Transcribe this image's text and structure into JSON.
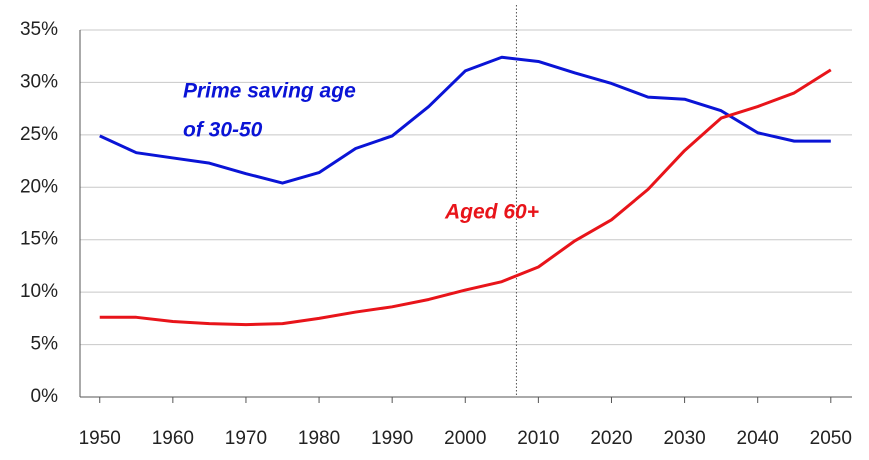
{
  "chart_data": {
    "type": "line",
    "x": [
      1950,
      1955,
      1960,
      1965,
      1970,
      1975,
      1980,
      1985,
      1990,
      1995,
      2000,
      2005,
      2010,
      2015,
      2020,
      2025,
      2030,
      2035,
      2040,
      2045,
      2050
    ],
    "series": [
      {
        "name": "Prime saving age of 30-50",
        "color": "#0a14d6",
        "values": [
          24.9,
          23.3,
          22.8,
          22.3,
          21.3,
          20.4,
          21.4,
          23.7,
          24.9,
          27.7,
          31.1,
          32.4,
          32.0,
          30.9,
          29.9,
          28.6,
          28.4,
          27.3,
          25.2,
          24.4,
          24.4
        ]
      },
      {
        "name": "Aged 60+",
        "color": "#e8141a",
        "values": [
          7.6,
          7.6,
          7.2,
          7.0,
          6.9,
          7.0,
          7.5,
          8.1,
          8.6,
          9.3,
          10.2,
          11.0,
          12.4,
          14.9,
          16.9,
          19.8,
          23.5,
          26.6,
          27.7,
          29.0,
          31.2
        ]
      }
    ],
    "annotations": [
      {
        "text": "Prime saving age",
        "color": "#0a14d6"
      },
      {
        "text": "of 30-50",
        "color": "#0a14d6"
      },
      {
        "text": "Aged 60+",
        "color": "#e8141a"
      }
    ],
    "vline_x": 2007,
    "xlim": [
      1947.3,
      2052.9
    ],
    "xticks": [
      1950,
      1960,
      1970,
      1980,
      1990,
      2000,
      2010,
      2020,
      2030,
      2040,
      2050
    ],
    "ylim": [
      0,
      35
    ],
    "yticks": [
      {
        "value": 0,
        "label": "0%"
      },
      {
        "value": 5,
        "label": "5%"
      },
      {
        "value": 10,
        "label": "10%"
      },
      {
        "value": 15,
        "label": "15%"
      },
      {
        "value": 20,
        "label": "20%"
      },
      {
        "value": 25,
        "label": "25%"
      },
      {
        "value": 30,
        "label": "30%"
      },
      {
        "value": 35,
        "label": "35%"
      }
    ],
    "grid": true
  }
}
